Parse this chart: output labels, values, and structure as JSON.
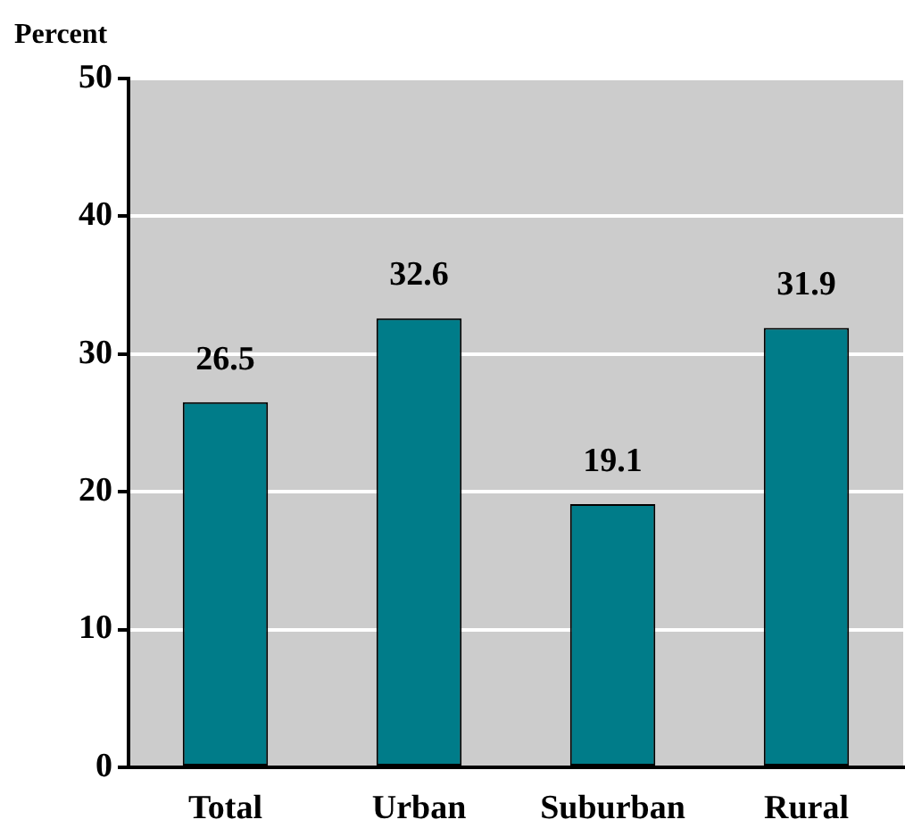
{
  "chart_data": {
    "type": "bar",
    "ylabel": "Percent",
    "categories": [
      "Total",
      "Urban",
      "Suburban",
      "Rural"
    ],
    "values": [
      26.5,
      32.6,
      19.1,
      31.9
    ],
    "color": "#007c89",
    "ylim": [
      0,
      50
    ],
    "yticks": [
      0,
      10,
      20,
      30,
      40,
      50
    ],
    "grid": "y",
    "data_labels": true,
    "legend": false
  }
}
